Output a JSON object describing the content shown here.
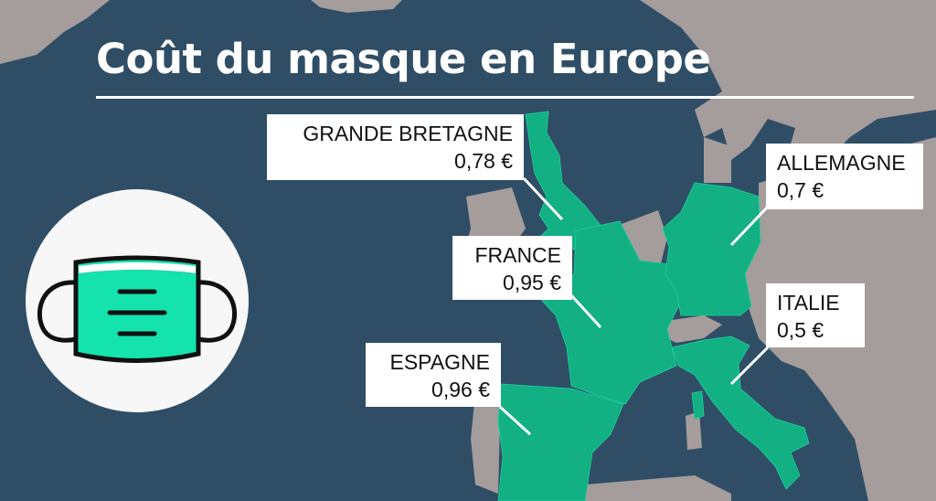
{
  "title": "Coût du masque en Europe",
  "colors": {
    "sea": "#2f4e66",
    "land": "#a59c9c",
    "highlight": "#12b082",
    "mask": "#14e3ad"
  },
  "icon": "face-mask-icon",
  "countries": [
    {
      "name": "GRANDE BRETAGNE",
      "price": "0,78 €"
    },
    {
      "name": "ALLEMAGNE",
      "price": "0,7 €"
    },
    {
      "name": "FRANCE",
      "price": "0,95 €"
    },
    {
      "name": "ITALIE",
      "price": "0,5 €"
    },
    {
      "name": "ESPAGNE",
      "price": "0,96 €"
    }
  ]
}
